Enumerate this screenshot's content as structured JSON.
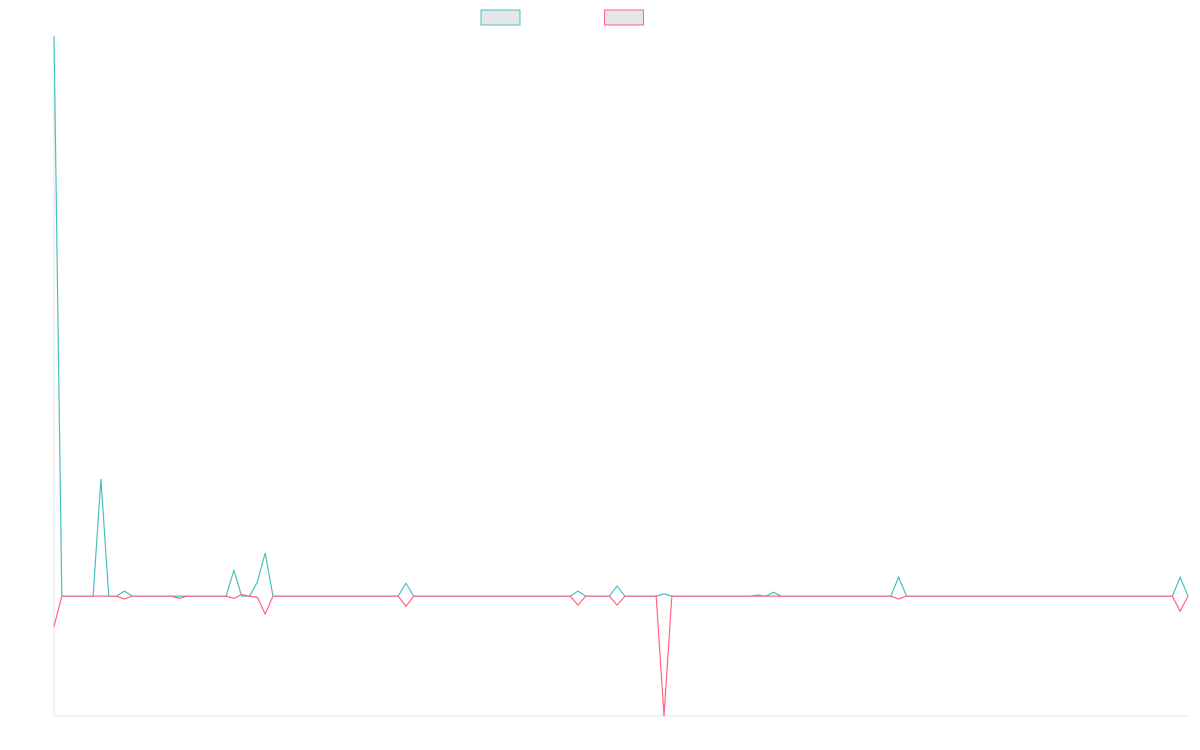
{
  "chart_data": {
    "type": "line",
    "ylim": [
      -21.4,
      100
    ],
    "series": [
      {
        "color": "#4bc0c0",
        "values": [
          100,
          0,
          0,
          0,
          0,
          0,
          20.9,
          0,
          0,
          0.9,
          0,
          0,
          0,
          0,
          0,
          0,
          0,
          0,
          0,
          0,
          0,
          0,
          0,
          4.6,
          0,
          0,
          2.5,
          7.7,
          0,
          0,
          0,
          0,
          0,
          0,
          0,
          0,
          0,
          0,
          0,
          0,
          0,
          0,
          0,
          0,
          0,
          2.3,
          0,
          0,
          0,
          0,
          0,
          0,
          0,
          0,
          0,
          0,
          0,
          0,
          0,
          0,
          0,
          0,
          0,
          0,
          0,
          0,
          0,
          0.9,
          0,
          0,
          0,
          0,
          1.8,
          0,
          0,
          0,
          0,
          0,
          0.4,
          0,
          0,
          0,
          0,
          0,
          0,
          0,
          0,
          0,
          0,
          0,
          0.2,
          0,
          0.7,
          0,
          0,
          0,
          0,
          0,
          0,
          0,
          0,
          0,
          0,
          0,
          0,
          0,
          0,
          0,
          3.4,
          0,
          0,
          0,
          0,
          0,
          0,
          0,
          0,
          0,
          0,
          0,
          0,
          0,
          0,
          0,
          0,
          0,
          0,
          0,
          0,
          0,
          0,
          0,
          0,
          0,
          0,
          0,
          0,
          0,
          0,
          0,
          0,
          0,
          0,
          0,
          3.4,
          0
        ]
      },
      {
        "color": "#ff6384",
        "values": [
          -5.4,
          0,
          0,
          0,
          0,
          0,
          0,
          0,
          0,
          -0.5,
          0,
          0,
          0,
          0,
          0,
          0,
          -0.4,
          0,
          0,
          0,
          0,
          0,
          0,
          -0.4,
          0.3,
          0,
          -0.2,
          -3.2,
          0,
          0,
          0,
          0,
          0,
          0,
          0,
          0,
          0,
          0,
          0,
          0,
          0,
          0,
          0,
          0,
          0,
          -1.8,
          0,
          0,
          0,
          0,
          0,
          0,
          0,
          0,
          0,
          0,
          0,
          0,
          0,
          0,
          0,
          0,
          0,
          0,
          0,
          0,
          0,
          -1.6,
          0,
          0,
          0,
          0,
          -1.6,
          0,
          0,
          0,
          0,
          0,
          -21.4,
          0,
          0,
          0,
          0,
          0,
          0,
          0,
          0,
          0,
          0,
          0,
          0,
          0,
          0,
          0,
          0,
          0,
          0,
          0,
          0,
          0,
          0,
          0,
          0,
          0,
          0,
          0,
          0,
          0,
          -0.5,
          0,
          0,
          0,
          0,
          0,
          0,
          0,
          0,
          0,
          0,
          0,
          0,
          0,
          0,
          0,
          0,
          0,
          0,
          0,
          0,
          0,
          0,
          0,
          0,
          0,
          0,
          0,
          0,
          0,
          0,
          0,
          0,
          0,
          0,
          0,
          -2.7,
          0
        ]
      }
    ]
  }
}
